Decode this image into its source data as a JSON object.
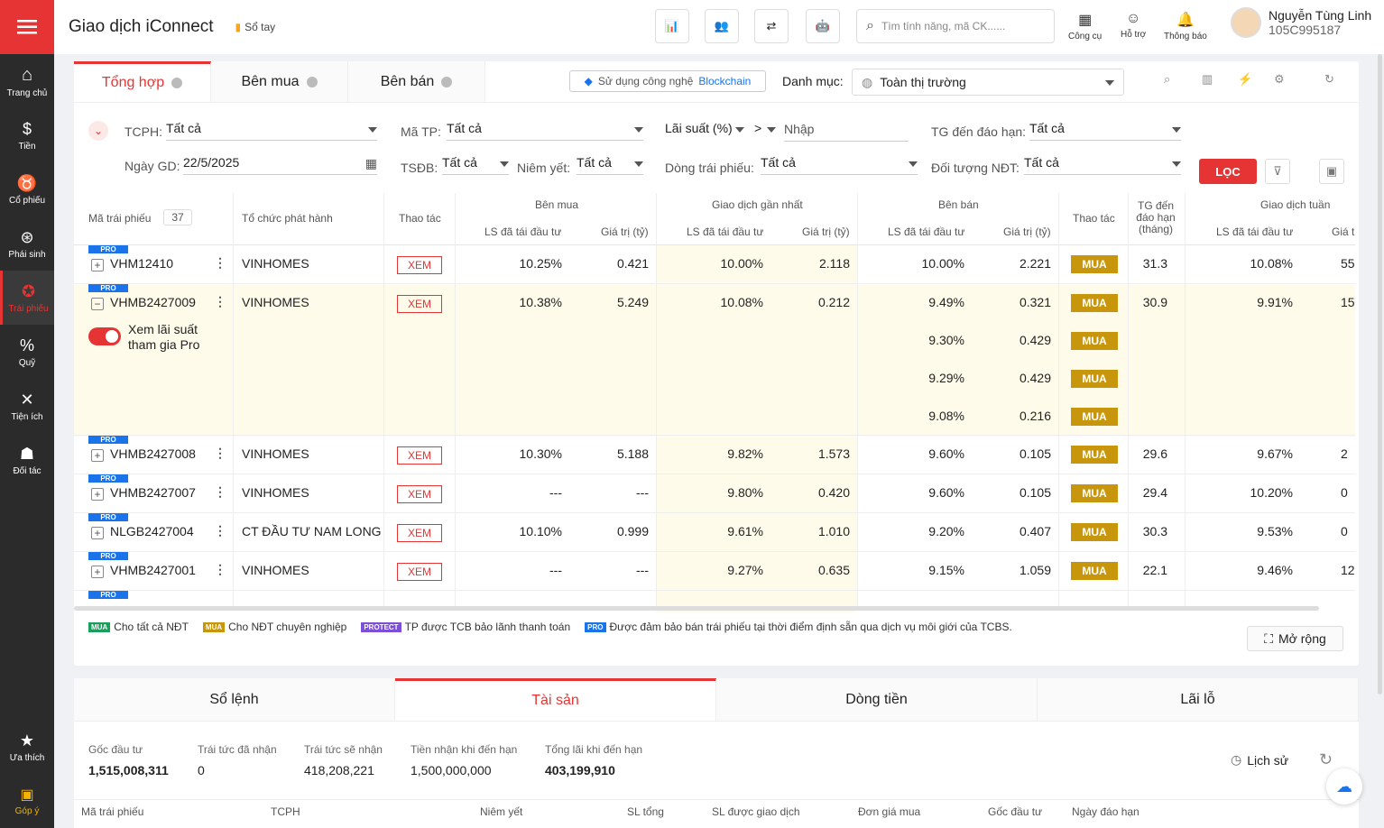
{
  "app": {
    "title": "Giao dịch iConnect",
    "sotay": "Sổ tay",
    "search_placeholder": "Tìm tính năng, mã CK......"
  },
  "tools": [
    {
      "label": "Công cụ"
    },
    {
      "label": "Hỗ trợ"
    },
    {
      "label": "Thông báo"
    }
  ],
  "user": {
    "name": "Nguyễn Tùng Linh",
    "account": "105C995187"
  },
  "sidebar": [
    {
      "label": "Trang chủ"
    },
    {
      "label": "Tiền"
    },
    {
      "label": "Cổ phiếu"
    },
    {
      "label": "Phái sinh"
    },
    {
      "label": "Trái phiếu"
    },
    {
      "label": "Quỹ"
    },
    {
      "label": "Tiện ích"
    },
    {
      "label": "Đối tác"
    }
  ],
  "sidebar_bottom": [
    {
      "label": "Ưa thích"
    },
    {
      "label": "Góp ý"
    }
  ],
  "tabs": [
    {
      "label": "Tổng hợp"
    },
    {
      "label": "Bên mua"
    },
    {
      "label": "Bên bán"
    }
  ],
  "blockchain": {
    "text": "Sử dụng công nghệ",
    "link": "Blockchain"
  },
  "danhmuc": {
    "label": "Danh mục:",
    "value": "Toàn thị trường"
  },
  "filters": {
    "tcph": {
      "label": "TCPH:",
      "value": "Tất cả"
    },
    "matp": {
      "label": "Mã TP:",
      "value": "Tất cả"
    },
    "laisuat": {
      "label": "Lãi suất (%)",
      "op": ">",
      "placeholder": "Nhập"
    },
    "tgdaohan": {
      "label": "TG đến đáo hạn:",
      "value": "Tất cả"
    },
    "ngaygd": {
      "label": "Ngày GD:",
      "value": "22/5/2025"
    },
    "tsdb": {
      "label": "TSĐB:",
      "value": "Tất cả"
    },
    "niemyet": {
      "label": "Niêm yết:",
      "value": "Tất cả"
    },
    "dongtp": {
      "label": "Dòng trái phiếu:",
      "value": "Tất cả"
    },
    "doituong": {
      "label": "Đối tượng NĐT:",
      "value": "Tất cả"
    },
    "loc": "LỌC"
  },
  "table_headers": {
    "ma": "Mã trái phiếu",
    "count": "37",
    "tcph": "Tổ chức phát hành",
    "thaotac": "Thao tác",
    "benmua": "Bên mua",
    "gdgannhat": "Giao dịch gần nhất",
    "benban": "Bên bán",
    "thaotac2": "Thao tác",
    "tgdaohan": "TG đến đáo hạn (tháng)",
    "gdtuan": "Giao dịch tuần",
    "ls": "LS đã tái đầu tư",
    "giatri": "Giá trị (tỷ)",
    "giatri_short": "Giá t"
  },
  "actions": {
    "xem": "XEM",
    "mua": "MUA",
    "pro": "PRO"
  },
  "pro_toggle": {
    "text1": "Xem lãi suất",
    "text2": "tham gia Pro"
  },
  "rows": [
    {
      "ma": "VHM12410",
      "tcph": "VINHOMES",
      "bm_ls": "10.25%",
      "bm_gt": "0.421",
      "gn_ls": "10.00%",
      "gn_gt": "2.118",
      "bb": [
        {
          "ls": "10.00%",
          "gt": "2.221"
        }
      ],
      "tg": "31.3",
      "wk_ls": "10.08%",
      "wk_gt": "55"
    },
    {
      "ma": "VHMB2427009",
      "tcph": "VINHOMES",
      "bm_ls": "10.38%",
      "bm_gt": "5.249",
      "gn_ls": "10.08%",
      "gn_gt": "0.212",
      "bb": [
        {
          "ls": "9.49%",
          "gt": "0.321"
        },
        {
          "ls": "9.30%",
          "gt": "0.429"
        },
        {
          "ls": "9.29%",
          "gt": "0.429"
        },
        {
          "ls": "9.08%",
          "gt": "0.216"
        }
      ],
      "tg": "30.9",
      "wk_ls": "9.91%",
      "wk_gt": "15"
    },
    {
      "ma": "VHMB2427008",
      "tcph": "VINHOMES",
      "bm_ls": "10.30%",
      "bm_gt": "5.188",
      "gn_ls": "9.82%",
      "gn_gt": "1.573",
      "bb": [
        {
          "ls": "9.60%",
          "gt": "0.105"
        }
      ],
      "tg": "29.6",
      "wk_ls": "9.67%",
      "wk_gt": "2"
    },
    {
      "ma": "VHMB2427007",
      "tcph": "VINHOMES",
      "bm_ls": "---",
      "bm_gt": "---",
      "gn_ls": "9.80%",
      "gn_gt": "0.420",
      "bb": [
        {
          "ls": "9.60%",
          "gt": "0.105"
        }
      ],
      "tg": "29.4",
      "wk_ls": "10.20%",
      "wk_gt": "0"
    },
    {
      "ma": "NLGB2427004",
      "tcph": "CT ĐẦU TƯ NAM LONG",
      "bm_ls": "10.10%",
      "bm_gt": "0.999",
      "gn_ls": "9.61%",
      "gn_gt": "1.010",
      "bb": [
        {
          "ls": "9.20%",
          "gt": "0.407"
        }
      ],
      "tg": "30.3",
      "wk_ls": "9.53%",
      "wk_gt": "0"
    },
    {
      "ma": "VHMB2427001",
      "tcph": "VINHOMES",
      "bm_ls": "---",
      "bm_gt": "---",
      "gn_ls": "9.27%",
      "gn_gt": "0.635",
      "bb": [
        {
          "ls": "9.15%",
          "gt": "1.059"
        }
      ],
      "tg": "22.1",
      "wk_ls": "9.46%",
      "wk_gt": "12"
    }
  ],
  "legend": [
    {
      "tag": "MUA",
      "color": "#1a9e5c",
      "text": "Cho tất cả NĐT"
    },
    {
      "tag": "MUA",
      "color": "#c8960c",
      "text": "Cho NĐT chuyên nghiệp"
    },
    {
      "tag": "PROTECT",
      "color": "#7b4fd6",
      "text": "TP được TCB bảo lãnh thanh toán"
    },
    {
      "tag": "PRO",
      "color": "#1a73e8",
      "text": "Được đảm bảo bán trái phiếu tại thời điểm định sẵn qua dịch vụ môi giới của TCBS."
    }
  ],
  "morong": "Mở rộng",
  "bottom_tabs": [
    {
      "label": "Sổ lệnh"
    },
    {
      "label": "Tài sản"
    },
    {
      "label": "Dòng tiền"
    },
    {
      "label": "Lãi lỗ"
    }
  ],
  "assets": [
    {
      "label": "Gốc đầu tư",
      "value": "1,515,008,311"
    },
    {
      "label": "Trái tức đã nhận",
      "value": "0"
    },
    {
      "label": "Trái tức sẽ nhận",
      "value": "418,208,221"
    },
    {
      "label": "Tiền nhận khi đến hạn",
      "value": "1,500,000,000"
    },
    {
      "label": "Tổng lãi khi đến hạn",
      "value": "403,199,910"
    }
  ],
  "lichsu": "Lịch sử",
  "bottom_headers": [
    "Mã trái phiếu",
    "TCPH",
    "Niêm yết",
    "SL tổng",
    "SL được giao dịch",
    "Đơn giá mua",
    "Gốc đầu tư",
    "Ngày đáo hạn"
  ],
  "colors": {
    "accent": "#e63434",
    "mua": "#c8960c",
    "highlight": "#fffbea",
    "pro": "#1a73e8"
  }
}
